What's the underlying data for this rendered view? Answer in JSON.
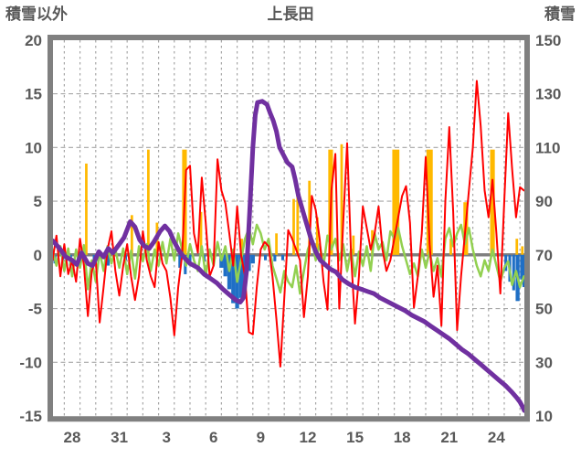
{
  "header": {
    "left_axis_title": "積雪以外",
    "chart_title": "上長田",
    "right_axis_title": "積雪"
  },
  "colors": {
    "frame": "#808080",
    "grid": "#a6a6a6",
    "zero_line": "#808080",
    "text": "#595959",
    "red": "#ff0000",
    "green": "#92d050",
    "gold": "#ffb900",
    "blue": "#1f6fc5",
    "purple": "#7030a0",
    "background": "#ffffff"
  },
  "chart_data": {
    "type": "line",
    "title": "上長田",
    "left_axis": {
      "label": "積雪以外",
      "ticks": [
        20,
        15,
        10,
        5,
        0,
        -5,
        -10,
        -15
      ],
      "range": [
        -15,
        20
      ]
    },
    "right_axis": {
      "label": "積雪",
      "ticks": [
        150,
        130,
        110,
        90,
        70,
        50,
        30,
        10
      ],
      "range": [
        10,
        150
      ]
    },
    "x_axis": {
      "tick_labels": [
        "28",
        "31",
        "3",
        "6",
        "9",
        "12",
        "15",
        "18",
        "21",
        "24"
      ],
      "tick_days": [
        2,
        5,
        8,
        11,
        14,
        17,
        20,
        23,
        26,
        29
      ],
      "day_start": 0.78,
      "day_end": 30.78,
      "gridlines": {
        "start": 1.5,
        "step": 1,
        "end": 30.5
      }
    },
    "h_gridline_values": [
      15,
      10,
      5,
      -5,
      -10
    ],
    "zero_value": 0,
    "grid": true,
    "legend": "none",
    "series": [
      {
        "name": "gold-bars",
        "type": "bars",
        "axis": "left",
        "color": "#ffb900",
        "default_width_days": 0.16,
        "bars": [
          [
            2.9,
            8.5
          ],
          [
            5.8,
            3.7
          ],
          [
            6.85,
            9.8
          ],
          [
            7.4,
            3.0
          ],
          [
            9.15,
            9.8,
            0.3
          ],
          [
            10.2,
            4.0
          ],
          [
            12.8,
            1.5
          ],
          [
            15.0,
            2.0
          ],
          [
            16.1,
            5.2
          ],
          [
            16.35,
            5.8
          ],
          [
            17.1,
            6.9
          ],
          [
            17.6,
            3.5
          ],
          [
            18.45,
            9.8,
            0.3
          ],
          [
            19.15,
            10.3
          ],
          [
            19.9,
            1.8
          ],
          [
            21.1,
            2.3
          ],
          [
            22.6,
            9.8,
            0.45
          ],
          [
            24.75,
            9.8,
            0.4
          ],
          [
            26.1,
            1.5
          ],
          [
            27.05,
            4.9,
            0.3
          ],
          [
            28.75,
            9.8,
            0.3
          ],
          [
            30.3,
            1.5
          ],
          [
            30.65,
            0.8
          ]
        ]
      },
      {
        "name": "blue-bars",
        "type": "bars",
        "axis": "left",
        "color": "#1f6fc5",
        "default_width_days": 0.18,
        "bars": [
          [
            0.9,
            -0.8
          ],
          [
            1.4,
            -0.5
          ],
          [
            1.9,
            -1.0
          ],
          [
            2.4,
            -0.7
          ],
          [
            3.4,
            -0.6
          ],
          [
            4.3,
            -1.0
          ],
          [
            5.4,
            -0.5
          ],
          [
            8.85,
            -1.2
          ],
          [
            9.2,
            -1.8
          ],
          [
            9.5,
            -1.0
          ],
          [
            10.4,
            -0.6
          ],
          [
            11.5,
            -1.2,
            0.25
          ],
          [
            11.75,
            -2.0,
            0.25
          ],
          [
            12.0,
            -3.2,
            0.25
          ],
          [
            12.25,
            -4.5,
            0.25
          ],
          [
            12.5,
            -5.0,
            0.25
          ],
          [
            12.75,
            -4.0,
            0.25
          ],
          [
            13.0,
            -2.5,
            0.25
          ],
          [
            13.25,
            -1.5,
            0.25
          ],
          [
            13.5,
            -0.8,
            0.25
          ],
          [
            14.3,
            -0.5
          ],
          [
            14.9,
            -0.6
          ],
          [
            15.4,
            -0.5
          ],
          [
            20.3,
            -0.4
          ],
          [
            29.6,
            -1.5
          ],
          [
            29.85,
            -2.5
          ],
          [
            30.1,
            -3.3
          ],
          [
            30.35,
            -4.3,
            0.25
          ],
          [
            30.6,
            -2.3
          ],
          [
            30.75,
            -3.0
          ]
        ]
      },
      {
        "name": "green-line",
        "type": "line",
        "axis": "left",
        "color": "#92d050",
        "stroke_width": 2.5,
        "start_day": 0.75,
        "step_days": 0.25,
        "values": [
          0.5,
          -1.0,
          0.8,
          -1.5,
          0.6,
          -2.0,
          0.5,
          -1.2,
          0.9,
          -3.2,
          -0.5,
          -2.5,
          0.3,
          -1.5,
          0.8,
          -0.8,
          0.5,
          -1.2,
          0.6,
          -1.8,
          0.4,
          -2.2,
          0.8,
          -0.6,
          1.0,
          -1.5,
          0.5,
          -1.0,
          1.2,
          -0.8,
          1.5,
          -0.5,
          2.0,
          0.5,
          -1.0,
          1.0,
          -0.5,
          -1.5,
          0.8,
          -2.0,
          0.5,
          -1.0,
          1.2,
          -0.5,
          0.8,
          -1.5,
          0.5,
          -2.5,
          -0.5,
          1.5,
          2.5,
          1.0,
          2.8,
          2.0,
          0.5,
          1.5,
          -1.0,
          -2.2,
          -3.5,
          -1.5,
          -2.5,
          -3.0,
          -1.0,
          -3.6,
          -1.5,
          0.5,
          1.5,
          -0.5,
          1.0,
          -1.0,
          1.8,
          0.5,
          1.5,
          -0.5,
          1.0,
          -1.5,
          0.5,
          -2.0,
          0.3,
          -1.0,
          0.8,
          -1.5,
          2.0,
          0.5,
          1.2,
          -0.5,
          2.2,
          1.5,
          2.5,
          0.8,
          -0.5,
          -1.8,
          -0.8,
          -2.0,
          0.5,
          -1.2,
          0.3,
          -1.5,
          -0.3,
          -2.0,
          1.5,
          2.5,
          0.8,
          2.0,
          2.8,
          1.0,
          2.5,
          0.5,
          -1.0,
          -2.0,
          -0.5,
          -1.5,
          0.5,
          -1.0,
          -2.5,
          -1.2,
          -0.6,
          -2.8,
          -1.5,
          -3.0,
          -2.0
        ]
      },
      {
        "name": "red-line",
        "type": "line",
        "axis": "left",
        "color": "#ff0000",
        "stroke_width": 2,
        "start_day": 0.75,
        "step_days": 0.25,
        "values": [
          -0.5,
          1.8,
          -2.0,
          1.0,
          -1.8,
          -0.5,
          -2.5,
          1.5,
          -1.0,
          -5.7,
          -1.5,
          -0.5,
          -6.3,
          -3.0,
          0.5,
          2.2,
          -1.5,
          -3.8,
          -1.0,
          1.0,
          -2.0,
          -4.2,
          -2.0,
          2.2,
          -0.5,
          -2.0,
          -3.0,
          1.2,
          -0.8,
          -1.5,
          -4.0,
          -7.5,
          -3.0,
          0.0,
          7.9,
          8.3,
          2.0,
          0.2,
          7.2,
          3.0,
          -2.0,
          -1.0,
          8.9,
          6.0,
          4.8,
          2.0,
          -1.0,
          4.5,
          0.0,
          -2.0,
          -7.2,
          -7.4,
          -3.0,
          0.5,
          1.2,
          0.8,
          -2.0,
          -6.0,
          -10.4,
          -4.0,
          2.3,
          1.5,
          0.5,
          -0.5,
          -5.8,
          -2.0,
          5.5,
          4.2,
          1.5,
          -2.5,
          -5.1,
          6.0,
          9.4,
          -5.0,
          3.0,
          10.4,
          0.0,
          -6.4,
          -2.0,
          4.5,
          2.5,
          0.5,
          2.0,
          4.5,
          0.5,
          -1.5,
          -0.5,
          1.5,
          3.5,
          5.5,
          6.4,
          3.0,
          -4.9,
          -2.0,
          2.0,
          9.1,
          1.0,
          -3.9,
          -1.0,
          -6.6,
          5.0,
          11.9,
          4.0,
          -7.0,
          -2.0,
          2.0,
          6.0,
          10.0,
          16.2,
          12.0,
          6.0,
          3.5,
          7.0,
          2.0,
          -3.6,
          5.0,
          13.2,
          8.0,
          3.5,
          6.3,
          6.0
        ]
      },
      {
        "name": "purple-line",
        "type": "xy-line",
        "axis": "right",
        "color": "#7030a0",
        "stroke_width": 5,
        "points": [
          [
            0.78,
            75.2
          ],
          [
            1.2,
            72.4
          ],
          [
            1.6,
            69.2
          ],
          [
            2.0,
            68
          ],
          [
            2.3,
            66.4
          ],
          [
            2.6,
            70.8
          ],
          [
            3.0,
            66.8
          ],
          [
            3.3,
            66
          ],
          [
            3.7,
            71.2
          ],
          [
            4.0,
            69.2
          ],
          [
            4.3,
            72.4
          ],
          [
            4.6,
            70.8
          ],
          [
            5.0,
            74
          ],
          [
            5.3,
            76.4
          ],
          [
            5.7,
            82.4
          ],
          [
            6.0,
            80.4
          ],
          [
            6.3,
            75.6
          ],
          [
            6.6,
            73.2
          ],
          [
            6.9,
            72.4
          ],
          [
            7.2,
            74.8
          ],
          [
            7.6,
            78.8
          ],
          [
            7.9,
            80.8
          ],
          [
            8.2,
            78.8
          ],
          [
            8.5,
            74.8
          ],
          [
            8.8,
            71.6
          ],
          [
            9.1,
            69.2
          ],
          [
            9.5,
            66.8
          ],
          [
            10.0,
            65.2
          ],
          [
            10.4,
            62.8
          ],
          [
            10.8,
            61.2
          ],
          [
            11.2,
            59.6
          ],
          [
            11.6,
            57.2
          ],
          [
            12.0,
            55.2
          ],
          [
            12.4,
            53.2
          ],
          [
            12.7,
            52.4
          ],
          [
            12.9,
            54
          ],
          [
            13.1,
            64
          ],
          [
            13.3,
            86
          ],
          [
            13.5,
            110
          ],
          [
            13.65,
            122
          ],
          [
            13.8,
            126.8
          ],
          [
            14.1,
            127.2
          ],
          [
            14.4,
            126
          ],
          [
            14.6,
            122.8
          ],
          [
            14.8,
            120
          ],
          [
            15.0,
            116
          ],
          [
            15.2,
            110
          ],
          [
            15.45,
            107.2
          ],
          [
            15.7,
            104.4
          ],
          [
            16.0,
            102.8
          ],
          [
            16.2,
            98
          ],
          [
            16.4,
            92
          ],
          [
            16.6,
            88
          ],
          [
            16.8,
            84
          ],
          [
            17.0,
            80
          ],
          [
            17.2,
            76
          ],
          [
            17.5,
            71.2
          ],
          [
            17.8,
            68
          ],
          [
            18.1,
            66.4
          ],
          [
            18.4,
            64.8
          ],
          [
            18.8,
            63.6
          ],
          [
            19.2,
            60.8
          ],
          [
            19.6,
            59.2
          ],
          [
            20.0,
            58
          ],
          [
            20.4,
            57.2
          ],
          [
            20.8,
            56.4
          ],
          [
            21.2,
            55.6
          ],
          [
            21.6,
            54
          ],
          [
            22.0,
            52.8
          ],
          [
            22.4,
            51.6
          ],
          [
            22.8,
            50.4
          ],
          [
            23.2,
            49.2
          ],
          [
            23.6,
            47.6
          ],
          [
            24.0,
            46.4
          ],
          [
            24.4,
            45.2
          ],
          [
            24.8,
            43.6
          ],
          [
            25.2,
            42
          ],
          [
            25.6,
            40.4
          ],
          [
            26.0,
            38.8
          ],
          [
            26.4,
            36.8
          ],
          [
            26.8,
            34.8
          ],
          [
            27.2,
            33.2
          ],
          [
            27.6,
            31.2
          ],
          [
            28.0,
            29.2
          ],
          [
            28.4,
            27.2
          ],
          [
            28.8,
            25.2
          ],
          [
            29.2,
            23.2
          ],
          [
            29.6,
            21.2
          ],
          [
            30.0,
            18.8
          ],
          [
            30.3,
            16.8
          ],
          [
            30.5,
            15.2
          ],
          [
            30.65,
            13.6
          ],
          [
            30.78,
            12
          ]
        ]
      }
    ]
  }
}
